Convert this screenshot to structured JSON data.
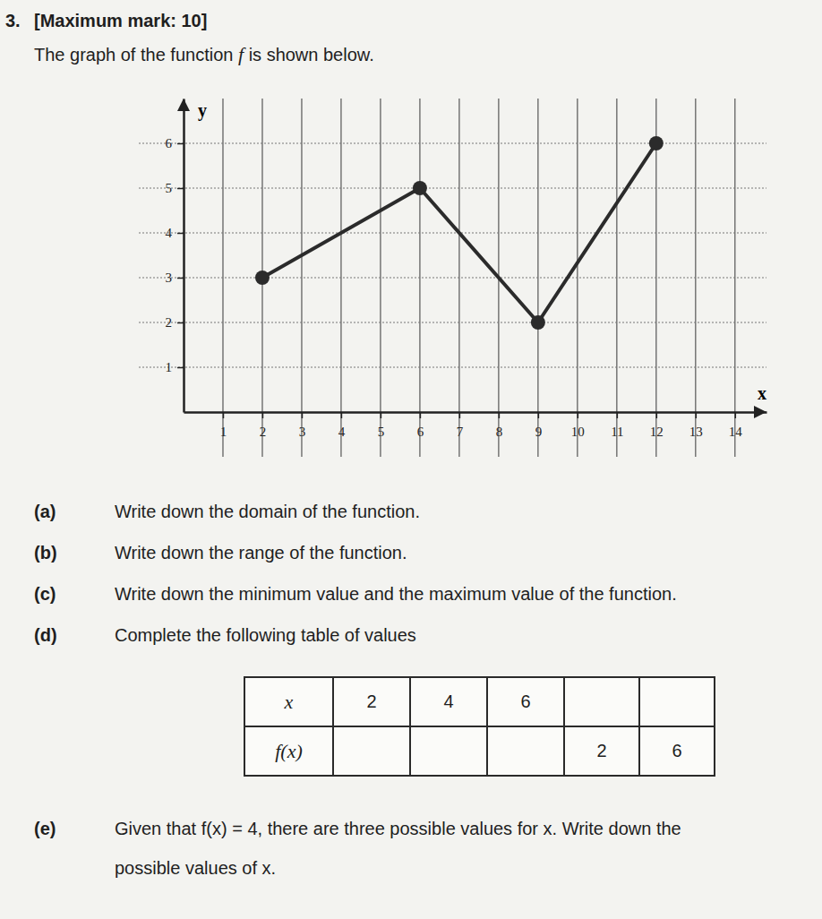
{
  "header": {
    "number": "3.",
    "marks": "[Maximum mark: 10]"
  },
  "intro": {
    "before": "The graph of the function",
    "func": "f",
    "after": "is shown below."
  },
  "chart_data": {
    "type": "line",
    "x_label": "x",
    "y_label": "y",
    "x": [
      2,
      6,
      9,
      12
    ],
    "values": [
      3,
      5,
      2,
      6
    ],
    "marker": "circle",
    "xlim": [
      0,
      14.8
    ],
    "ylim": [
      0,
      7
    ],
    "xticks": [
      1,
      2,
      3,
      4,
      5,
      6,
      7,
      8,
      9,
      10,
      11,
      12,
      13,
      14
    ],
    "yticks": [
      1,
      2,
      3,
      4,
      5,
      6
    ],
    "grid": true
  },
  "questions": [
    {
      "label": "(a)",
      "lines": [
        "Write down the domain of the function."
      ]
    },
    {
      "label": "(b)",
      "lines": [
        "Write down the range of the function."
      ]
    },
    {
      "label": "(c)",
      "lines": [
        "Write down the minimum value and the maximum value of the function."
      ]
    },
    {
      "label": "(d)",
      "lines": [
        "Complete the following table of values"
      ]
    },
    {
      "label": "(e)",
      "lines": [
        "Given that f(x) = 4, there are three possible values for x. Write down the",
        "possible values of x."
      ]
    }
  ],
  "table": {
    "rows": [
      [
        "x",
        2,
        4,
        6,
        null,
        null
      ],
      [
        "f(x)",
        null,
        null,
        null,
        2,
        6
      ]
    ]
  }
}
